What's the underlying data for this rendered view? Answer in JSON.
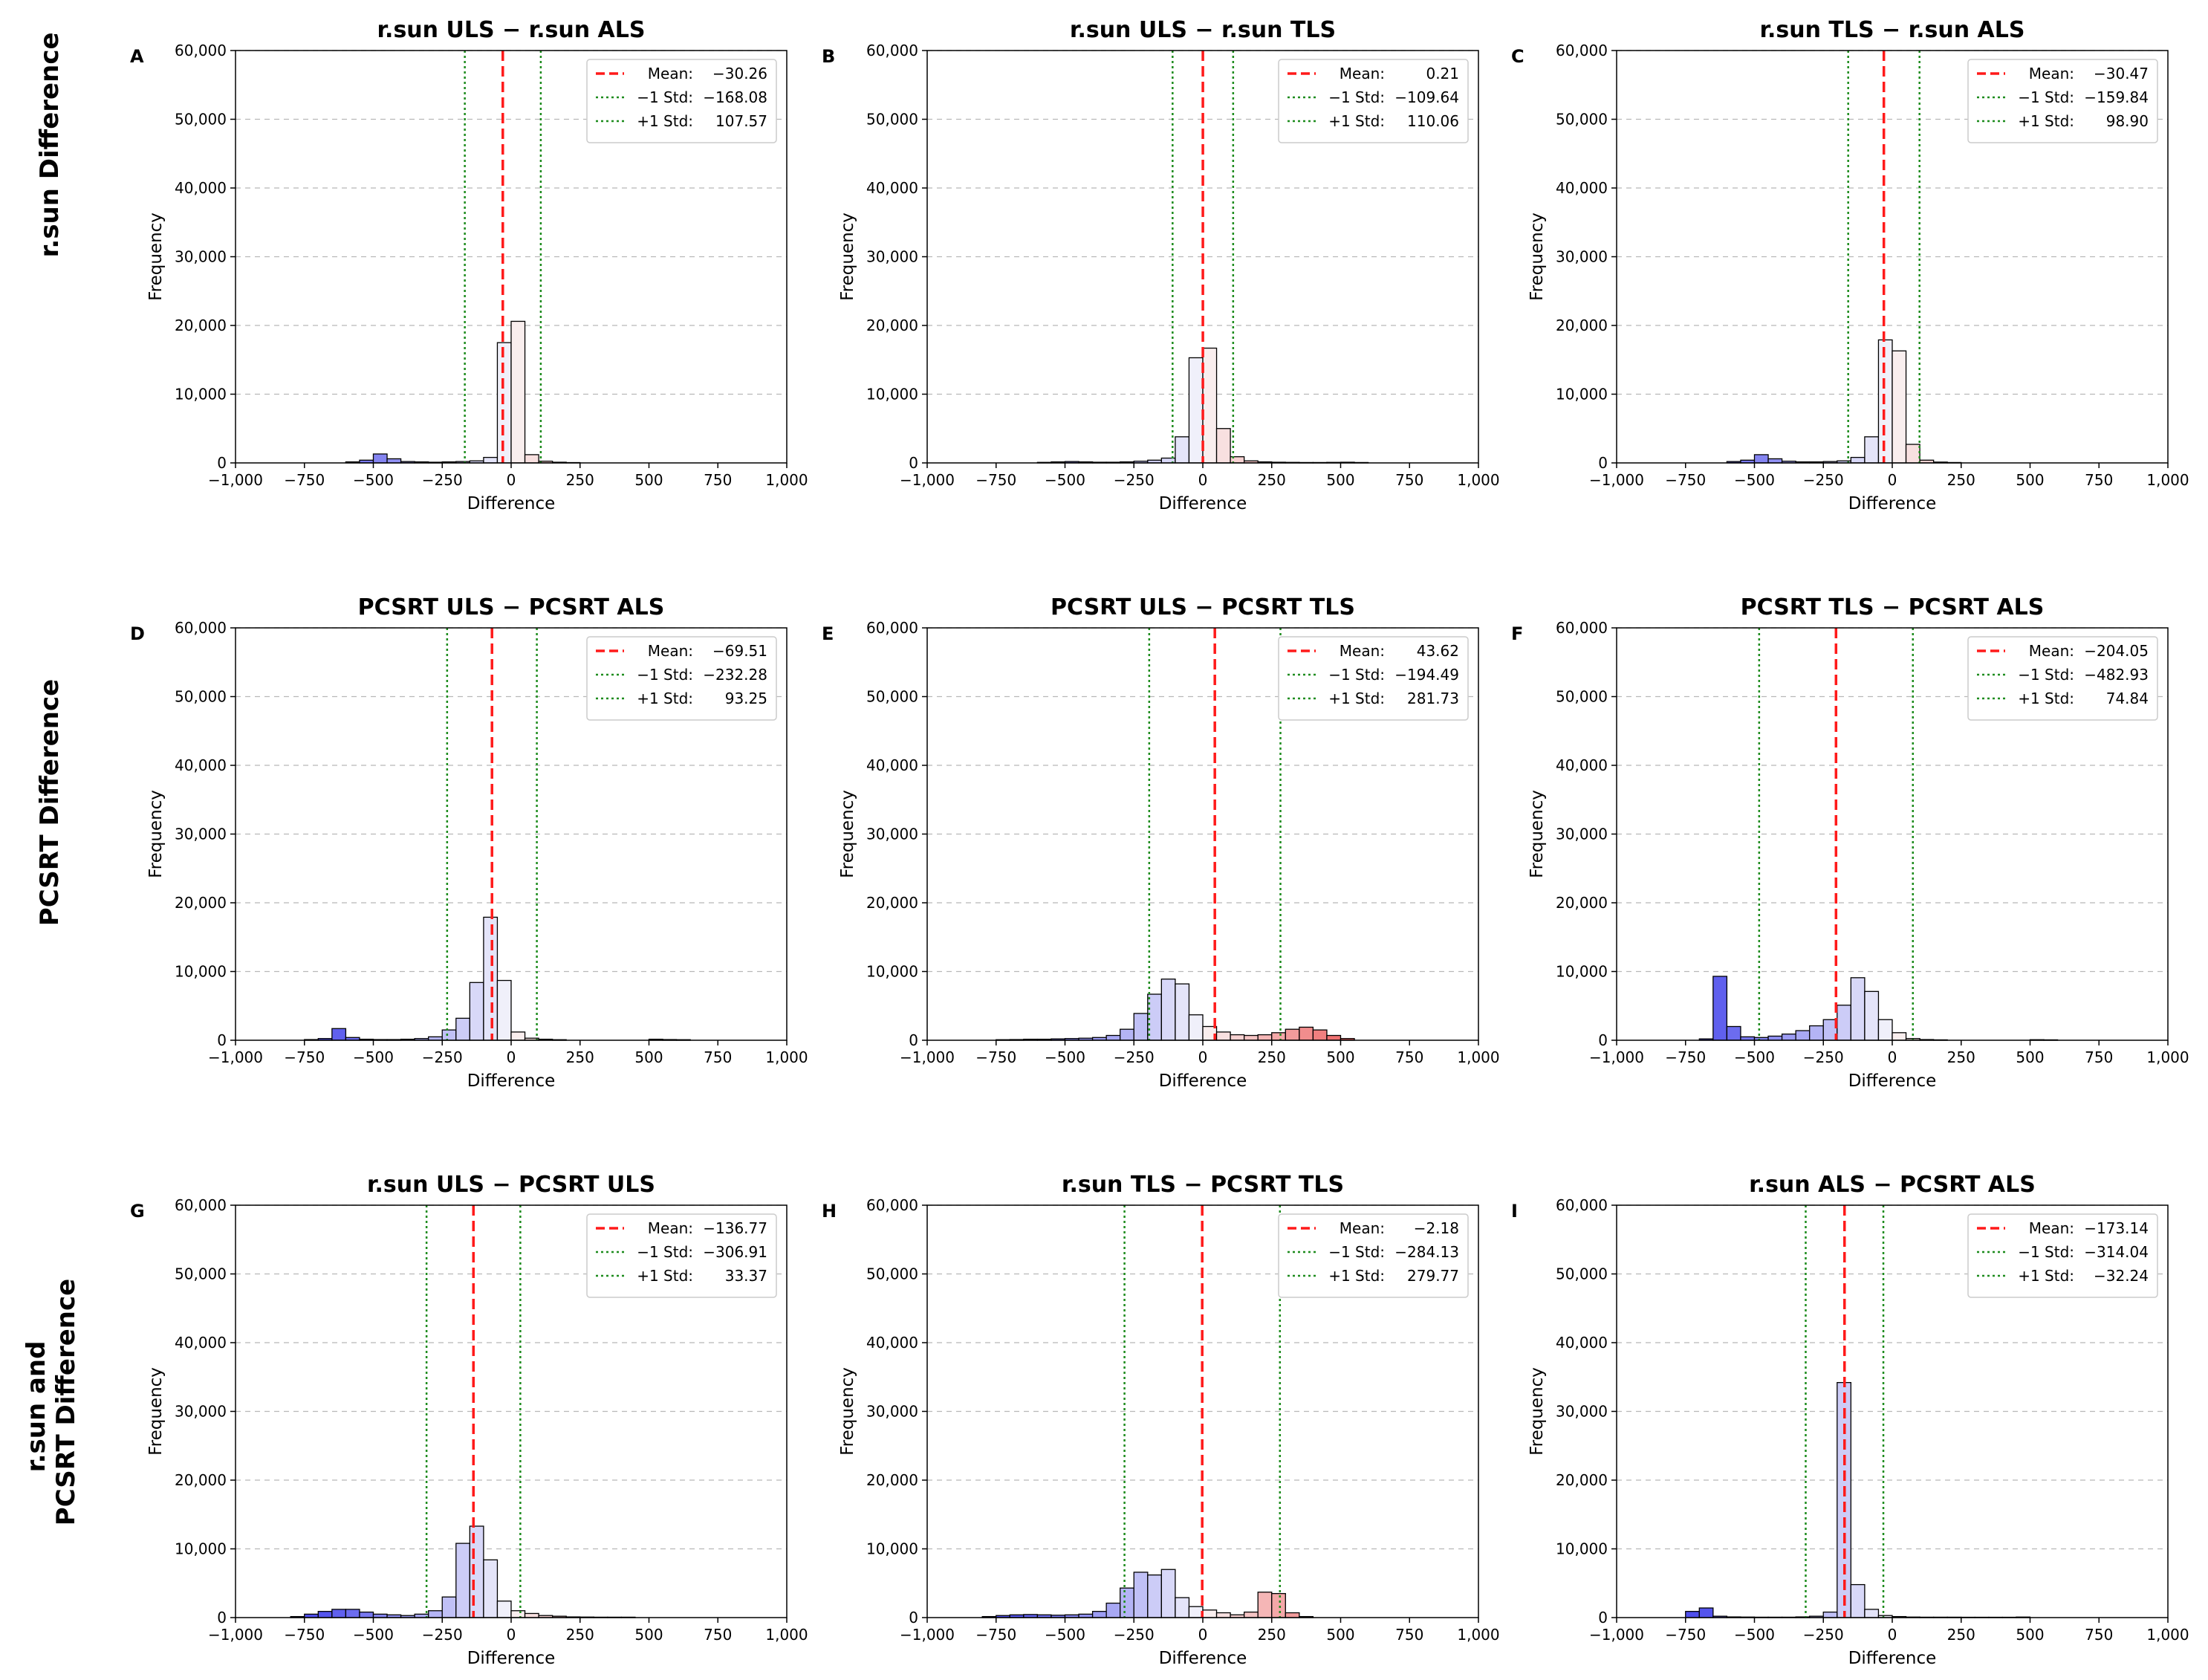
{
  "figure": {
    "row_labels": [
      [
        "r.sun Difference"
      ],
      [
        "PCSRT Difference"
      ],
      [
        "r.sun and",
        "PCSRT Difference"
      ]
    ]
  },
  "chart_data": [
    {
      "type": "bar",
      "panel": "A",
      "title": "r.sun ULS − r.sun ALS",
      "xlabel": "Difference",
      "ylabel": "Frequency",
      "xlim": [
        -1000,
        1000
      ],
      "ylim": [
        0,
        60000
      ],
      "grid": "y dashed",
      "xticks": [
        "−1,000",
        "−750",
        "−500",
        "−250",
        "0",
        "250",
        "500",
        "750",
        "1,000"
      ],
      "yticks": [
        "0",
        "10,000",
        "20,000",
        "30,000",
        "40,000",
        "50,000",
        "60,000"
      ],
      "bin_width": 50,
      "bins": [
        [
          -600,
          150
        ],
        [
          -550,
          400
        ],
        [
          -500,
          1300
        ],
        [
          -450,
          600
        ],
        [
          -400,
          200
        ],
        [
          -350,
          150
        ],
        [
          -300,
          100
        ],
        [
          -250,
          150
        ],
        [
          -200,
          200
        ],
        [
          -150,
          300
        ],
        [
          -100,
          800
        ],
        [
          -50,
          17500
        ],
        [
          0,
          20600
        ],
        [
          50,
          1200
        ],
        [
          100,
          250
        ],
        [
          150,
          100
        ],
        [
          200,
          50
        ]
      ],
      "mean": -30.26,
      "std_minus": -168.08,
      "std_plus": 107.57,
      "legend": [
        [
          "Mean:",
          "−30.26"
        ],
        [
          "−1 Std:",
          "−168.08"
        ],
        [
          "+1 Std:",
          "107.57"
        ]
      ]
    },
    {
      "type": "bar",
      "panel": "B",
      "title": "r.sun ULS − r.sun TLS",
      "xlabel": "Difference",
      "ylabel": "Frequency",
      "xlim": [
        -1000,
        1000
      ],
      "ylim": [
        0,
        60000
      ],
      "grid": "y dashed",
      "xticks": [
        "−1,000",
        "−750",
        "−500",
        "−250",
        "0",
        "250",
        "500",
        "750",
        "1,000"
      ],
      "yticks": [
        "0",
        "10,000",
        "20,000",
        "30,000",
        "40,000",
        "50,000",
        "60,000"
      ],
      "bin_width": 50,
      "bins": [
        [
          -600,
          80
        ],
        [
          -550,
          150
        ],
        [
          -500,
          200
        ],
        [
          -450,
          150
        ],
        [
          -400,
          100
        ],
        [
          -350,
          100
        ],
        [
          -300,
          150
        ],
        [
          -250,
          250
        ],
        [
          -200,
          400
        ],
        [
          -150,
          700
        ],
        [
          -100,
          3800
        ],
        [
          -50,
          15300
        ],
        [
          0,
          16700
        ],
        [
          50,
          5000
        ],
        [
          100,
          900
        ],
        [
          150,
          300
        ],
        [
          200,
          150
        ],
        [
          250,
          100
        ],
        [
          300,
          80
        ],
        [
          350,
          60
        ],
        [
          400,
          60
        ],
        [
          450,
          80
        ],
        [
          500,
          100
        ],
        [
          550,
          60
        ]
      ],
      "mean": 0.21,
      "std_minus": -109.64,
      "std_plus": 110.06,
      "legend": [
        [
          "Mean:",
          "0.21"
        ],
        [
          "−1 Std:",
          "−109.64"
        ],
        [
          "+1 Std:",
          "110.06"
        ]
      ]
    },
    {
      "type": "bar",
      "panel": "C",
      "title": "r.sun TLS − r.sun ALS",
      "xlabel": "Difference",
      "ylabel": "Frequency",
      "xlim": [
        -1000,
        1000
      ],
      "ylim": [
        0,
        60000
      ],
      "grid": "y dashed",
      "xticks": [
        "−1,000",
        "−750",
        "−500",
        "−250",
        "0",
        "250",
        "500",
        "750",
        "1,000"
      ],
      "yticks": [
        "0",
        "10,000",
        "20,000",
        "30,000",
        "40,000",
        "50,000",
        "60,000"
      ],
      "bin_width": 50,
      "bins": [
        [
          -600,
          200
        ],
        [
          -550,
          400
        ],
        [
          -500,
          1200
        ],
        [
          -450,
          600
        ],
        [
          -400,
          250
        ],
        [
          -350,
          150
        ],
        [
          -300,
          150
        ],
        [
          -250,
          200
        ],
        [
          -200,
          300
        ],
        [
          -150,
          800
        ],
        [
          -100,
          3800
        ],
        [
          -50,
          17900
        ],
        [
          0,
          16300
        ],
        [
          50,
          2700
        ],
        [
          100,
          400
        ],
        [
          150,
          120
        ],
        [
          200,
          60
        ]
      ],
      "mean": -30.47,
      "std_minus": -159.84,
      "std_plus": 98.9,
      "legend": [
        [
          "Mean:",
          "−30.47"
        ],
        [
          "−1 Std:",
          "−159.84"
        ],
        [
          "+1 Std:",
          "98.90"
        ]
      ]
    },
    {
      "type": "bar",
      "panel": "D",
      "title": "PCSRT ULS − PCSRT ALS",
      "xlabel": "Difference",
      "ylabel": "Frequency",
      "xlim": [
        -1000,
        1000
      ],
      "ylim": [
        0,
        60000
      ],
      "grid": "y dashed",
      "xticks": [
        "−1,000",
        "−750",
        "−500",
        "−250",
        "0",
        "250",
        "500",
        "750",
        "1,000"
      ],
      "yticks": [
        "0",
        "10,000",
        "20,000",
        "30,000",
        "40,000",
        "50,000",
        "60,000"
      ],
      "bin_width": 50,
      "bins": [
        [
          -750,
          100
        ],
        [
          -700,
          250
        ],
        [
          -650,
          1700
        ],
        [
          -600,
          400
        ],
        [
          -550,
          150
        ],
        [
          -500,
          100
        ],
        [
          -450,
          100
        ],
        [
          -400,
          150
        ],
        [
          -350,
          250
        ],
        [
          -300,
          500
        ],
        [
          -250,
          1500
        ],
        [
          -200,
          3200
        ],
        [
          -150,
          8400
        ],
        [
          -100,
          17900
        ],
        [
          -50,
          8700
        ],
        [
          0,
          1200
        ],
        [
          50,
          300
        ],
        [
          100,
          150
        ],
        [
          150,
          80
        ],
        [
          500,
          150
        ],
        [
          550,
          100
        ],
        [
          600,
          80
        ]
      ],
      "mean": -69.51,
      "std_minus": -232.28,
      "std_plus": 93.25,
      "legend": [
        [
          "Mean:",
          "−69.51"
        ],
        [
          "−1 Std:",
          "−232.28"
        ],
        [
          "+1 Std:",
          "93.25"
        ]
      ]
    },
    {
      "type": "bar",
      "panel": "E",
      "title": "PCSRT ULS − PCSRT TLS",
      "xlabel": "Difference",
      "ylabel": "Frequency",
      "xlim": [
        -1000,
        1000
      ],
      "ylim": [
        0,
        60000
      ],
      "grid": "y dashed",
      "xticks": [
        "−1,000",
        "−750",
        "−500",
        "−250",
        "0",
        "250",
        "500",
        "750",
        "1,000"
      ],
      "yticks": [
        "0",
        "10,000",
        "20,000",
        "30,000",
        "40,000",
        "50,000",
        "60,000"
      ],
      "bin_width": 50,
      "bins": [
        [
          -750,
          80
        ],
        [
          -700,
          100
        ],
        [
          -650,
          150
        ],
        [
          -600,
          150
        ],
        [
          -550,
          200
        ],
        [
          -500,
          250
        ],
        [
          -450,
          300
        ],
        [
          -400,
          400
        ],
        [
          -350,
          700
        ],
        [
          -300,
          1600
        ],
        [
          -250,
          3900
        ],
        [
          -200,
          6700
        ],
        [
          -150,
          8900
        ],
        [
          -100,
          8200
        ],
        [
          -50,
          3700
        ],
        [
          0,
          2000
        ],
        [
          50,
          1200
        ],
        [
          100,
          800
        ],
        [
          150,
          700
        ],
        [
          200,
          800
        ],
        [
          250,
          1100
        ],
        [
          300,
          1600
        ],
        [
          350,
          1900
        ],
        [
          400,
          1500
        ],
        [
          450,
          700
        ],
        [
          500,
          250
        ]
      ],
      "mean": 43.62,
      "std_minus": -194.49,
      "std_plus": 281.73,
      "legend": [
        [
          "Mean:",
          "43.62"
        ],
        [
          "−1 Std:",
          "−194.49"
        ],
        [
          "+1 Std:",
          "281.73"
        ]
      ]
    },
    {
      "type": "bar",
      "panel": "F",
      "title": "PCSRT TLS − PCSRT ALS",
      "xlabel": "Difference",
      "ylabel": "Frequency",
      "xlim": [
        -1000,
        1000
      ],
      "ylim": [
        0,
        60000
      ],
      "grid": "y dashed",
      "xticks": [
        "−1,000",
        "−750",
        "−500",
        "−250",
        "0",
        "250",
        "500",
        "750",
        "1,000"
      ],
      "yticks": [
        "0",
        "10,000",
        "20,000",
        "30,000",
        "40,000",
        "50,000",
        "60,000"
      ],
      "bin_width": 50,
      "bins": [
        [
          -700,
          200
        ],
        [
          -650,
          9300
        ],
        [
          -600,
          2000
        ],
        [
          -550,
          500
        ],
        [
          -500,
          400
        ],
        [
          -450,
          600
        ],
        [
          -400,
          900
        ],
        [
          -350,
          1400
        ],
        [
          -300,
          2100
        ],
        [
          -250,
          3000
        ],
        [
          -200,
          5100
        ],
        [
          -150,
          9100
        ],
        [
          -100,
          7100
        ],
        [
          -50,
          3000
        ],
        [
          0,
          1100
        ],
        [
          50,
          250
        ],
        [
          100,
          100
        ],
        [
          150,
          60
        ],
        [
          500,
          80
        ],
        [
          550,
          60
        ]
      ],
      "mean": -204.05,
      "std_minus": -482.93,
      "std_plus": 74.84,
      "legend": [
        [
          "Mean:",
          "−204.05"
        ],
        [
          "−1 Std:",
          "−482.93"
        ],
        [
          "+1 Std:",
          "74.84"
        ]
      ]
    },
    {
      "type": "bar",
      "panel": "G",
      "title": "r.sun ULS − PCSRT ULS",
      "xlabel": "Difference",
      "ylabel": "Frequency",
      "xlim": [
        -1000,
        1000
      ],
      "ylim": [
        0,
        60000
      ],
      "grid": "y dashed",
      "xticks": [
        "−1,000",
        "−750",
        "−500",
        "−250",
        "0",
        "250",
        "500",
        "750",
        "1,000"
      ],
      "yticks": [
        "0",
        "10,000",
        "20,000",
        "30,000",
        "40,000",
        "50,000",
        "60,000"
      ],
      "bin_width": 50,
      "bins": [
        [
          -800,
          150
        ],
        [
          -750,
          500
        ],
        [
          -700,
          900
        ],
        [
          -650,
          1200
        ],
        [
          -600,
          1200
        ],
        [
          -550,
          800
        ],
        [
          -500,
          500
        ],
        [
          -450,
          400
        ],
        [
          -400,
          300
        ],
        [
          -350,
          500
        ],
        [
          -300,
          1000
        ],
        [
          -250,
          3000
        ],
        [
          -200,
          10800
        ],
        [
          -150,
          13300
        ],
        [
          -100,
          8400
        ],
        [
          -50,
          2400
        ],
        [
          0,
          1000
        ],
        [
          50,
          600
        ],
        [
          100,
          300
        ],
        [
          150,
          200
        ],
        [
          200,
          100
        ],
        [
          250,
          80
        ],
        [
          300,
          60
        ],
        [
          350,
          60
        ],
        [
          400,
          60
        ]
      ],
      "mean": -136.77,
      "std_minus": -306.91,
      "std_plus": 33.37,
      "legend": [
        [
          "Mean:",
          "−136.77"
        ],
        [
          "−1 Std:",
          "−306.91"
        ],
        [
          "+1 Std:",
          "33.37"
        ]
      ]
    },
    {
      "type": "bar",
      "panel": "H",
      "title": "r.sun TLS − PCSRT TLS",
      "xlabel": "Difference",
      "ylabel": "Frequency",
      "xlim": [
        -1000,
        1000
      ],
      "ylim": [
        0,
        60000
      ],
      "grid": "y dashed",
      "xticks": [
        "−1,000",
        "−750",
        "−500",
        "−250",
        "0",
        "250",
        "500",
        "750",
        "1,000"
      ],
      "yticks": [
        "0",
        "10,000",
        "20,000",
        "30,000",
        "40,000",
        "50,000",
        "60,000"
      ],
      "bin_width": 50,
      "bins": [
        [
          -800,
          150
        ],
        [
          -750,
          300
        ],
        [
          -700,
          400
        ],
        [
          -650,
          450
        ],
        [
          -600,
          400
        ],
        [
          -550,
          350
        ],
        [
          -500,
          400
        ],
        [
          -450,
          500
        ],
        [
          -400,
          900
        ],
        [
          -350,
          2100
        ],
        [
          -300,
          4300
        ],
        [
          -250,
          6600
        ],
        [
          -200,
          6200
        ],
        [
          -150,
          7000
        ],
        [
          -100,
          2900
        ],
        [
          -50,
          1600
        ],
        [
          0,
          1100
        ],
        [
          50,
          700
        ],
        [
          100,
          400
        ],
        [
          150,
          800
        ],
        [
          200,
          3700
        ],
        [
          250,
          3500
        ],
        [
          300,
          700
        ],
        [
          350,
          150
        ]
      ],
      "mean": -2.18,
      "std_minus": -284.13,
      "std_plus": 279.77,
      "legend": [
        [
          "Mean:",
          "−2.18"
        ],
        [
          "−1 Std:",
          "−284.13"
        ],
        [
          "+1 Std:",
          "279.77"
        ]
      ]
    },
    {
      "type": "bar",
      "panel": "I",
      "title": "r.sun ALS − PCSRT ALS",
      "xlabel": "Difference",
      "ylabel": "Frequency",
      "xlim": [
        -1000,
        1000
      ],
      "ylim": [
        0,
        60000
      ],
      "grid": "y dashed",
      "xticks": [
        "−1,000",
        "−750",
        "−500",
        "−250",
        "0",
        "250",
        "500",
        "750",
        "1,000"
      ],
      "yticks": [
        "0",
        "10,000",
        "20,000",
        "30,000",
        "40,000",
        "50,000",
        "60,000"
      ],
      "bin_width": 50,
      "bins": [
        [
          -750,
          900
        ],
        [
          -700,
          1400
        ],
        [
          -650,
          200
        ],
        [
          -600,
          100
        ],
        [
          -550,
          80
        ],
        [
          -500,
          60
        ],
        [
          -450,
          60
        ],
        [
          -400,
          60
        ],
        [
          -350,
          100
        ],
        [
          -300,
          200
        ],
        [
          -250,
          800
        ],
        [
          -200,
          34200
        ],
        [
          -150,
          4800
        ],
        [
          -100,
          1200
        ],
        [
          -50,
          300
        ],
        [
          0,
          150
        ],
        [
          50,
          80
        ],
        [
          100,
          60
        ],
        [
          150,
          60
        ],
        [
          200,
          60
        ],
        [
          250,
          50
        ],
        [
          300,
          50
        ],
        [
          350,
          50
        ],
        [
          400,
          50
        ],
        [
          450,
          80
        ]
      ],
      "mean": -173.14,
      "std_minus": -314.04,
      "std_plus": -32.24,
      "legend": [
        [
          "Mean:",
          "−173.14"
        ],
        [
          "−1 Std:",
          "−314.04"
        ],
        [
          "+1 Std:",
          "−32.24"
        ]
      ]
    }
  ]
}
